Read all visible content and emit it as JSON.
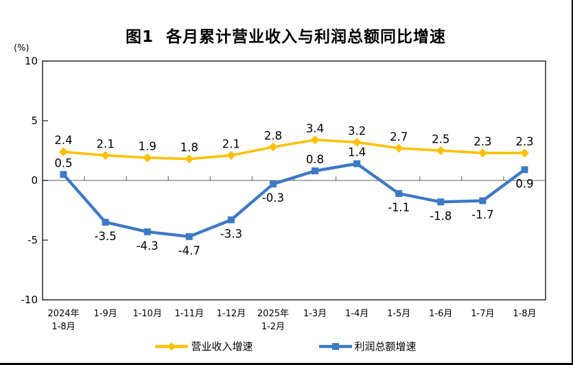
{
  "page": {
    "title": "图1  各月累计营业收入与利润总额同比增速",
    "unit_label": "(%)"
  },
  "chart_data": {
    "type": "line",
    "title": "图1 各月累计营业收入与利润总额同比增速",
    "ylabel": "(%)",
    "xlabel": "",
    "ylim": [
      -10,
      10
    ],
    "yticks": [
      10,
      5,
      0,
      -5,
      -10
    ],
    "grid": false,
    "legend_position": "bottom",
    "axis_color": "#262626",
    "zero_line_color": "#7f7f7f",
    "data_label_color": "#000000",
    "categories": [
      [
        "2024年",
        "1-8月"
      ],
      [
        "1-9月"
      ],
      [
        "1-10月"
      ],
      [
        "1-11月"
      ],
      [
        "1-12月"
      ],
      [
        "2025年",
        "1-2月"
      ],
      [
        "1-3月"
      ],
      [
        "1-4月"
      ],
      [
        "1-5月"
      ],
      [
        "1-6月"
      ],
      [
        "1-7月"
      ],
      [
        "1-8月"
      ]
    ],
    "series": [
      {
        "name": "营业收入增速",
        "color": "#FFC000",
        "marker": "diamond",
        "values": [
          2.4,
          2.1,
          1.9,
          1.8,
          2.1,
          2.8,
          3.4,
          3.2,
          2.7,
          2.5,
          2.3,
          2.3
        ],
        "label_positions": [
          "above",
          "above",
          "above",
          "above",
          "above",
          "above",
          "above",
          "above",
          "above",
          "above",
          "above",
          "above"
        ]
      },
      {
        "name": "利润总额增速",
        "color": "#3D79C5",
        "marker": "square",
        "values": [
          0.5,
          -3.5,
          -4.3,
          -4.7,
          -3.3,
          -0.3,
          0.8,
          1.4,
          -1.1,
          -1.8,
          -1.7,
          0.9
        ],
        "label_positions": [
          "above",
          "below",
          "below",
          "below",
          "below",
          "below",
          "above",
          "above",
          "below",
          "below",
          "below",
          "below"
        ]
      }
    ]
  }
}
